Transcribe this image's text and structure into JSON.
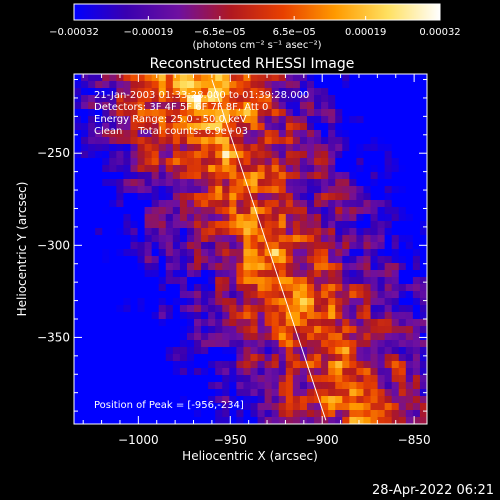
{
  "chart_data": {
    "type": "heatmap",
    "title": "Reconstructed RHESSI Image",
    "xlabel": "Heliocentric X (arcsec)",
    "ylabel": "Heliocentric Y (arcsec)",
    "xlim": [
      -1035,
      -843
    ],
    "ylim": [
      -397,
      -207
    ],
    "x_ticks": [
      -1000,
      -950,
      -900,
      -850
    ],
    "x_tick_labels": [
      "−1000",
      "−950",
      "−900",
      "−850"
    ],
    "y_ticks": [
      -250,
      -300,
      -350
    ],
    "y_tick_labels": [
      "−250",
      "−300",
      "−350"
    ],
    "colorbar": {
      "min": -0.00032,
      "max": 0.00032,
      "ticks": [
        -0.00032,
        -0.00019,
        -6.5e-05,
        6.5e-05,
        0.00019,
        0.00032
      ],
      "tick_labels": [
        "−0.00032",
        "−0.00019",
        "−6.5e−05",
        "6.5e−05",
        "0.00019",
        "0.00032"
      ],
      "unit_text": "(photons cm⁻² s⁻¹ asec⁻²)",
      "colors": [
        "#0000ff",
        "#3a00b0",
        "#6e10a0",
        "#b01820",
        "#e84000",
        "#ff9a00",
        "#ffe060",
        "#ffffff"
      ]
    },
    "annotations": {
      "time_range": "21-Jan-2003 01:33:28.000 to 01:39:28.000",
      "detectors": "Detectors: 3F 4F 5F 6F 7F 8F, Att 0",
      "energy": "Energy Range: 25.0 - 50.0 keV",
      "algorithm": "Clean     Total counts: 6.9e+03",
      "peak": "Position of Peak = [-956,-234]"
    },
    "limb_line": {
      "x": [
        -960,
        -898
      ],
      "y": [
        -210,
        -395
      ]
    }
  },
  "footer": {
    "timestamp": "28-Apr-2022 06:21"
  }
}
